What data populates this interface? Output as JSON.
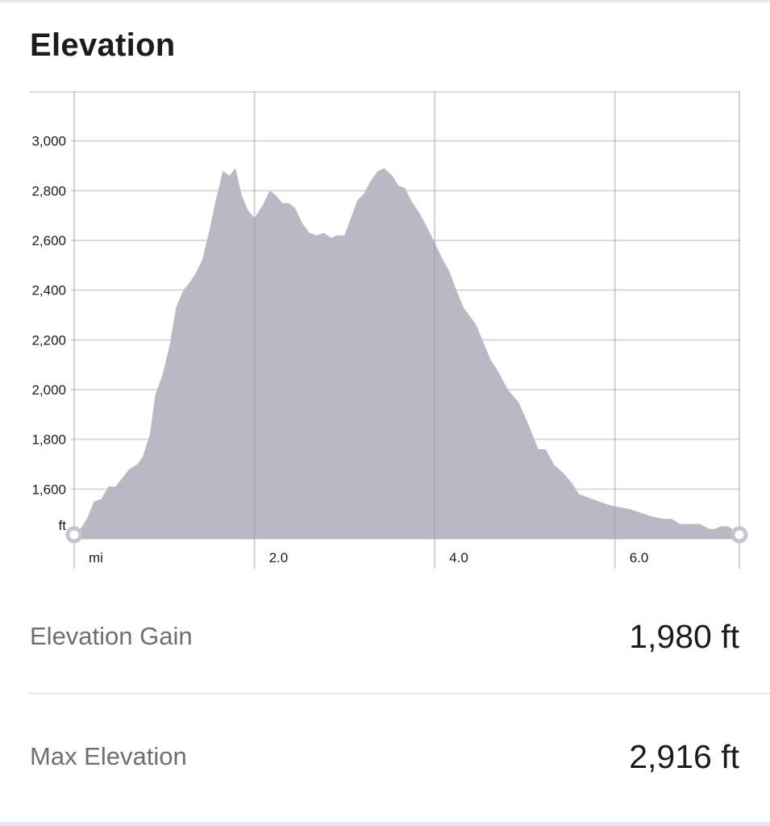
{
  "title": "Elevation",
  "stats": [
    {
      "label": "Elevation Gain",
      "value": "1,980 ft"
    },
    {
      "label": "Max Elevation",
      "value": "2,916 ft"
    }
  ],
  "colors": {
    "fill": "#b9b9c6",
    "grid": "#d9d9de",
    "marker": "#c4c4cf"
  },
  "chart_data": {
    "type": "area",
    "title": "Elevation",
    "xlabel": "mi",
    "ylabel": "ft",
    "xlim": [
      0,
      7.38
    ],
    "ylim": [
      1400,
      3200
    ],
    "grid": true,
    "yticks": [
      1600,
      1800,
      2000,
      2200,
      2400,
      2600,
      2800,
      3000
    ],
    "ytick_labels": [
      "1,600",
      "1,800",
      "2,000",
      "2,200",
      "2,400",
      "2,600",
      "2,800",
      "3,000"
    ],
    "xticks": [
      2.0,
      4.0,
      6.0
    ],
    "xtick_labels": [
      "2.0",
      "4.0",
      "6.0"
    ],
    "x": [
      0,
      0.07,
      0.14,
      0.22,
      0.3,
      0.38,
      0.46,
      0.61,
      0.7,
      0.76,
      0.84,
      0.9,
      0.98,
      1.06,
      1.13,
      1.21,
      1.28,
      1.35,
      1.42,
      1.5,
      1.57,
      1.65,
      1.72,
      1.79,
      1.86,
      1.93,
      2.0,
      2.09,
      2.17,
      2.24,
      2.31,
      2.38,
      2.45,
      2.53,
      2.61,
      2.69,
      2.77,
      2.85,
      2.92,
      3.0,
      3.08,
      3.14,
      3.22,
      3.29,
      3.37,
      3.44,
      3.53,
      3.6,
      3.67,
      3.74,
      3.83,
      3.92,
      4.0,
      4.08,
      4.17,
      4.24,
      4.32,
      4.46,
      4.54,
      4.62,
      4.71,
      4.81,
      4.93,
      5.04,
      5.15,
      5.23,
      5.32,
      5.44,
      5.53,
      5.6,
      5.75,
      5.9,
      6.0,
      6.16,
      6.41,
      6.53,
      6.63,
      6.72,
      6.87,
      6.94,
      7.05,
      7.11,
      7.17,
      7.26,
      7.3,
      7.38
    ],
    "y": [
      1420,
      1440,
      1480,
      1550,
      1560,
      1610,
      1610,
      1680,
      1700,
      1730,
      1820,
      1980,
      2060,
      2180,
      2330,
      2400,
      2430,
      2470,
      2520,
      2640,
      2760,
      2880,
      2860,
      2890,
      2780,
      2720,
      2690,
      2740,
      2800,
      2780,
      2750,
      2750,
      2730,
      2670,
      2630,
      2620,
      2630,
      2610,
      2620,
      2620,
      2700,
      2760,
      2790,
      2840,
      2880,
      2890,
      2860,
      2820,
      2810,
      2760,
      2710,
      2650,
      2590,
      2530,
      2470,
      2400,
      2330,
      2260,
      2190,
      2120,
      2070,
      2000,
      1950,
      1860,
      1760,
      1760,
      1700,
      1660,
      1620,
      1580,
      1560,
      1540,
      1530,
      1520,
      1490,
      1480,
      1480,
      1460,
      1460,
      1460,
      1440,
      1440,
      1450,
      1450,
      1440,
      1420
    ]
  }
}
